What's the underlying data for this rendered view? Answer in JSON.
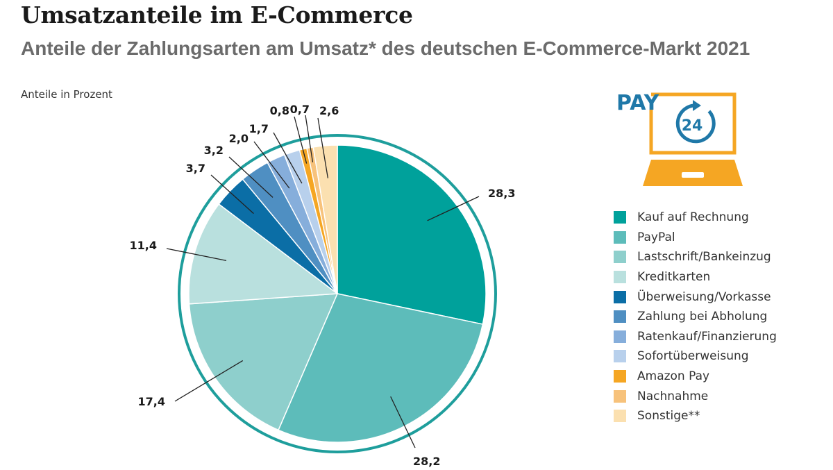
{
  "header": {
    "title": "Umsatzanteile im E-Commerce",
    "subtitle": "Anteile der Zahlungsarten am Umsatz* des deutschen E-Commerce-Markt 2021",
    "unit_note": "Anteile in Prozent"
  },
  "logo": {
    "text": "PAY",
    "badge": "24",
    "icon": "laptop-with-clock-icon",
    "colors": {
      "blue": "#1f78a8",
      "orange": "#f5a623"
    }
  },
  "chart_data": {
    "type": "pie",
    "title": "Umsatzanteile im E-Commerce",
    "subtitle": "Anteile der Zahlungsarten am Umsatz* des deutschen E-Commerce-Markt 2021",
    "unit": "Anteile in Prozent",
    "start": "12 o'clock, clockwise",
    "legend_position": "right",
    "ring_color": "#1e9e9c",
    "slices": [
      {
        "label": "Kauf auf Rechnung",
        "value": 28.3,
        "value_label": "28,3",
        "color": "#00a19b"
      },
      {
        "label": "PayPal",
        "value": 28.2,
        "value_label": "28,2",
        "color": "#5dbcba"
      },
      {
        "label": "Lastschrift/Bankeinzug",
        "value": 17.4,
        "value_label": "17,4",
        "color": "#8ecfcc"
      },
      {
        "label": "Kreditkarten",
        "value": 11.4,
        "value_label": "11,4",
        "color": "#b9e0de"
      },
      {
        "label": "Überweisung/Vorkasse",
        "value": 3.7,
        "value_label": "3,7",
        "color": "#0b6ea6"
      },
      {
        "label": "Zahlung bei Abholung",
        "value": 3.2,
        "value_label": "3,2",
        "color": "#4f8fc2"
      },
      {
        "label": "Ratenkauf/Finanzierung",
        "value": 2.0,
        "value_label": "2,0",
        "color": "#86aedb"
      },
      {
        "label": "Sofortüberweisung",
        "value": 1.7,
        "value_label": "1,7",
        "color": "#b8d0ec"
      },
      {
        "label": "Amazon Pay",
        "value": 0.8,
        "value_label": "0,8",
        "color": "#f5a623"
      },
      {
        "label": "Nachnahme",
        "value": 0.7,
        "value_label": "0,7",
        "color": "#f7c27b"
      },
      {
        "label": "Sonstige**",
        "value": 2.6,
        "value_label": "2,6",
        "color": "#fbe0b0"
      }
    ]
  }
}
